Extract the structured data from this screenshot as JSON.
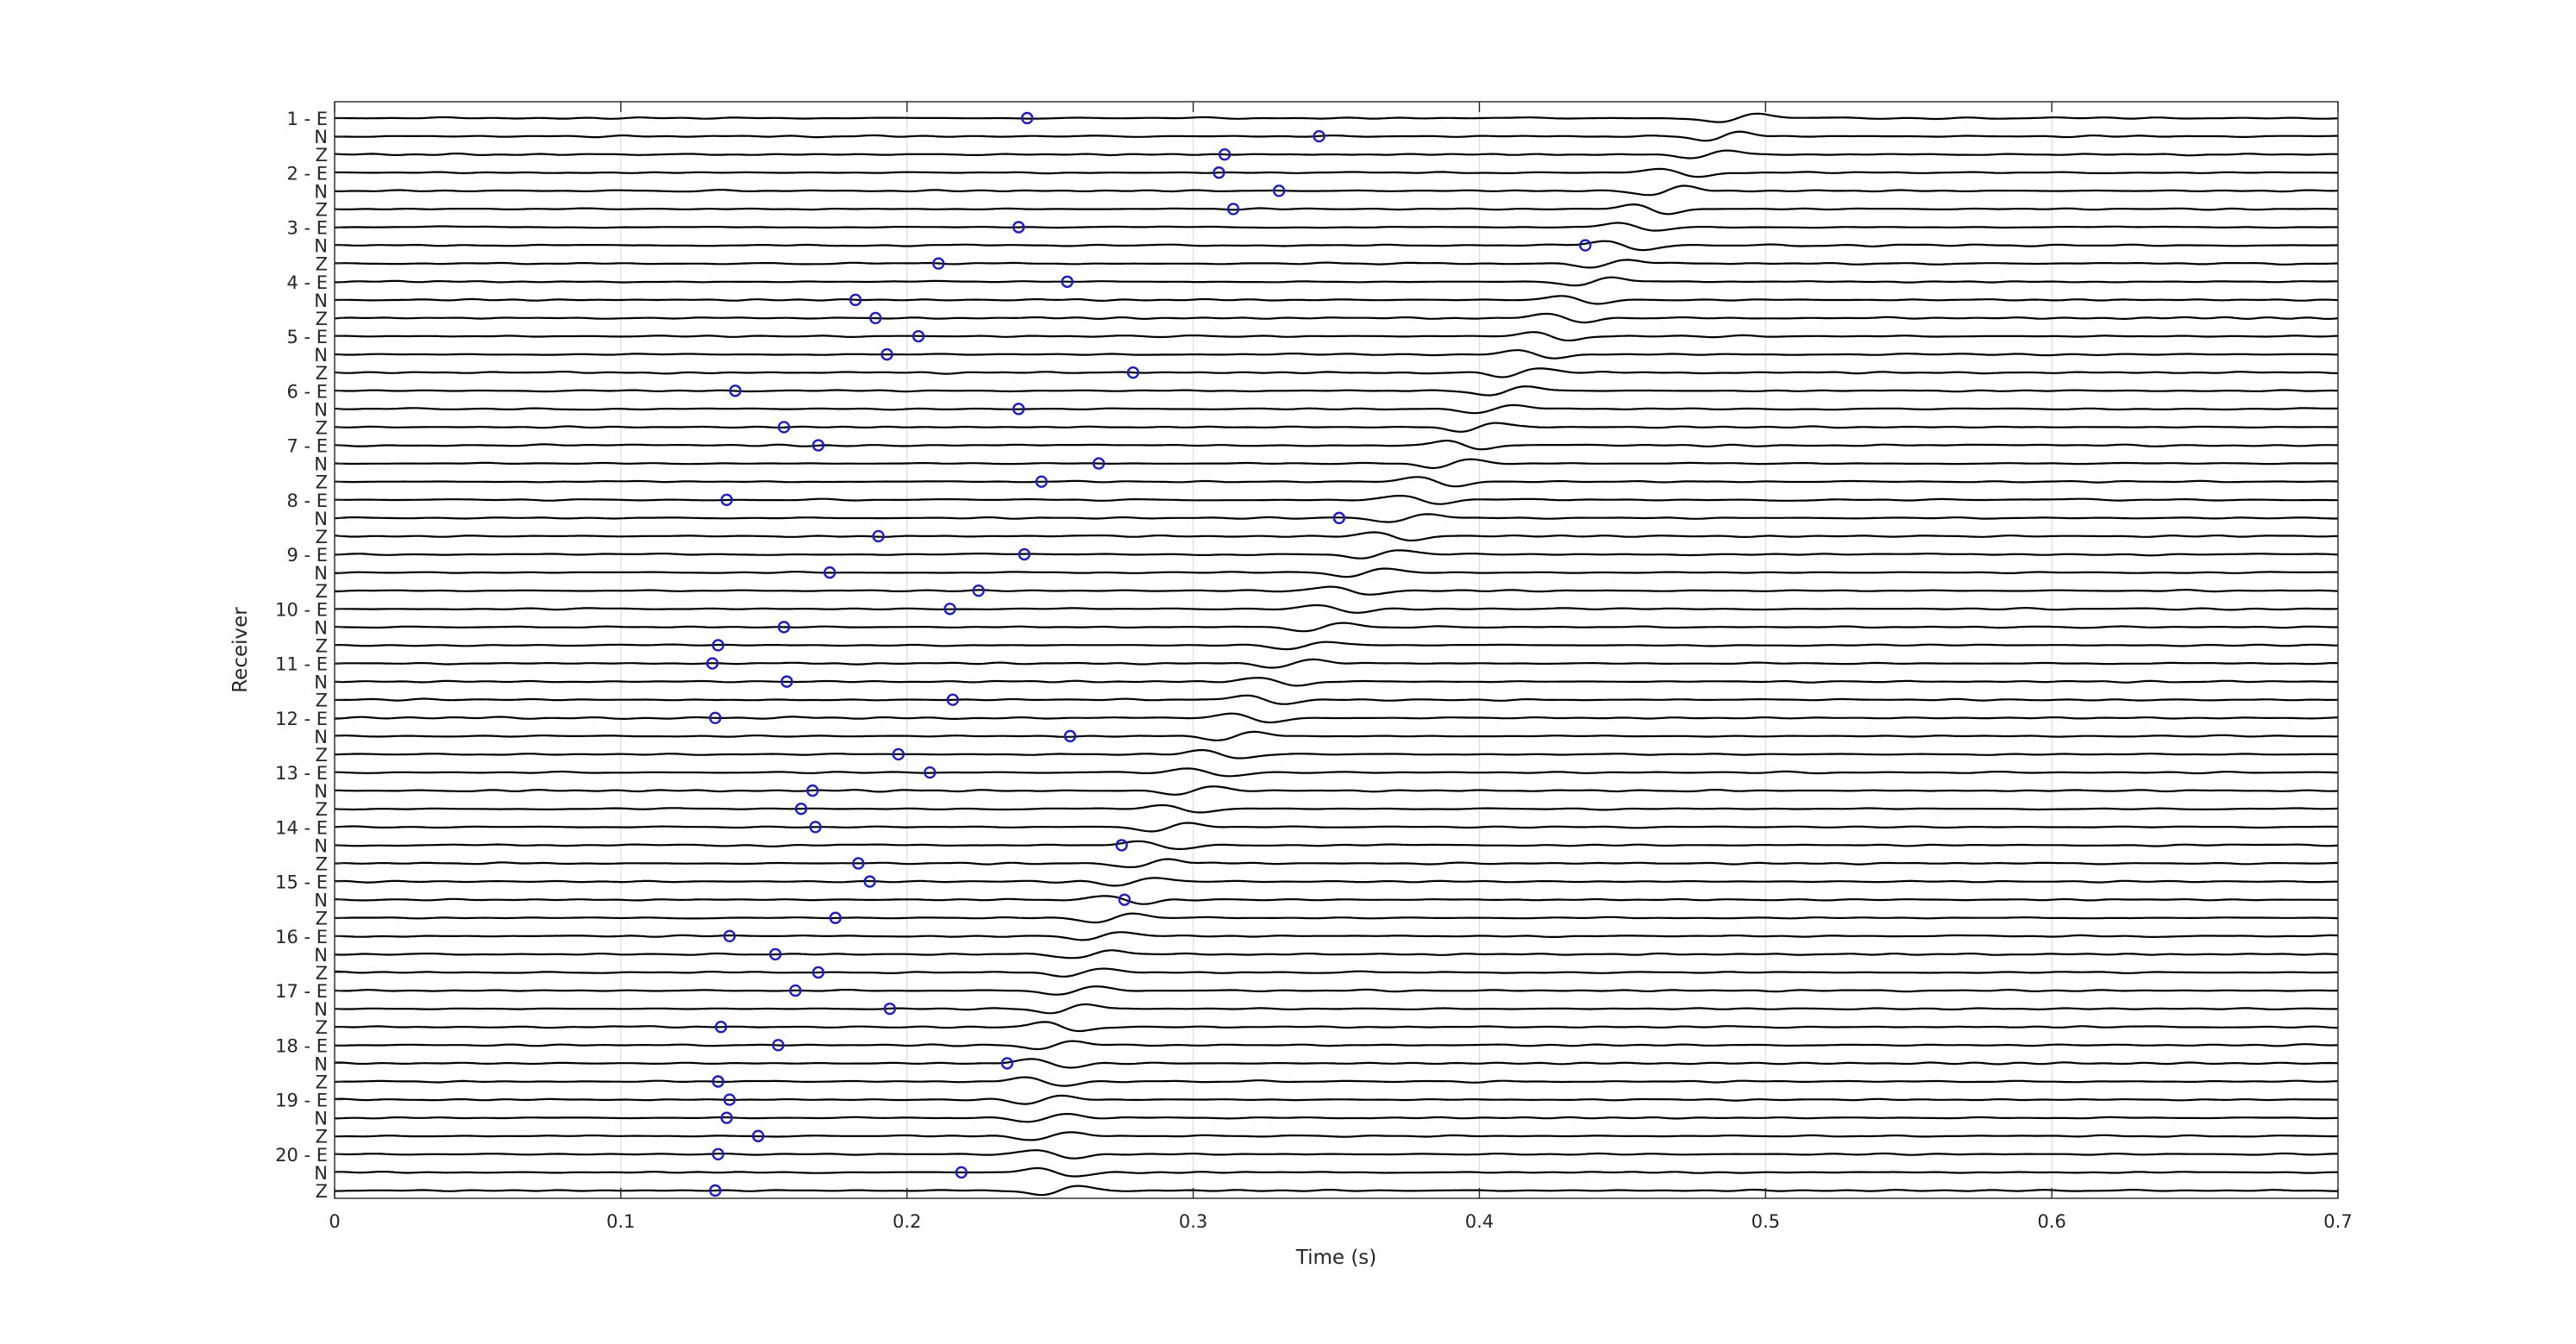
{
  "chart_data": {
    "type": "line",
    "xlabel": "Time (s)",
    "ylabel": "Receiver",
    "xlim": [
      0,
      0.7
    ],
    "xticks": [
      "0",
      "0.1",
      "0.2",
      "0.3",
      "0.4",
      "0.5",
      "0.6",
      "0.7"
    ],
    "grid": true,
    "trace_color": "#000000",
    "pick_color": "#1f1fb4",
    "pick_marker": "circle",
    "receivers": [
      "1",
      "2",
      "3",
      "4",
      "5",
      "6",
      "7",
      "8",
      "9",
      "10",
      "11",
      "12",
      "13",
      "14",
      "15",
      "16",
      "17",
      "18",
      "19",
      "20"
    ],
    "components": [
      "E",
      "N",
      "Z"
    ],
    "picks_s": [
      0.242,
      0.344,
      0.311,
      0.309,
      0.33,
      0.314,
      0.239,
      0.437,
      0.211,
      0.256,
      0.182,
      0.189,
      0.204,
      0.193,
      0.279,
      0.14,
      0.239,
      0.157,
      0.169,
      0.267,
      0.247,
      0.137,
      0.351,
      0.19,
      0.241,
      0.173,
      0.225,
      0.215,
      0.157,
      0.134,
      0.132,
      0.158,
      0.216,
      0.133,
      0.257,
      0.197,
      0.208,
      0.167,
      0.163,
      0.168,
      0.275,
      0.183,
      0.187,
      0.276,
      0.175,
      0.138,
      0.154,
      0.169,
      0.161,
      0.194,
      0.135,
      0.155,
      0.235,
      0.134,
      0.138,
      0.137,
      0.148,
      0.134,
      0.219,
      0.133
    ],
    "arrivals_s": [
      0.49,
      0.485,
      0.48,
      0.47,
      0.465,
      0.46,
      0.455,
      0.45,
      0.445,
      0.44,
      0.435,
      0.43,
      0.425,
      0.42,
      0.415,
      0.41,
      0.405,
      0.4,
      0.395,
      0.39,
      0.385,
      0.38,
      0.375,
      0.37,
      0.365,
      0.36,
      0.355,
      0.35,
      0.345,
      0.34,
      0.335,
      0.33,
      0.325,
      0.32,
      0.315,
      0.31,
      0.305,
      0.3,
      0.296,
      0.292,
      0.288,
      0.284,
      0.28,
      0.276,
      0.272,
      0.268,
      0.265,
      0.262,
      0.259,
      0.256,
      0.254,
      0.252,
      0.25,
      0.248,
      0.248,
      0.249,
      0.25,
      0.251,
      0.252,
      0.253
    ]
  }
}
